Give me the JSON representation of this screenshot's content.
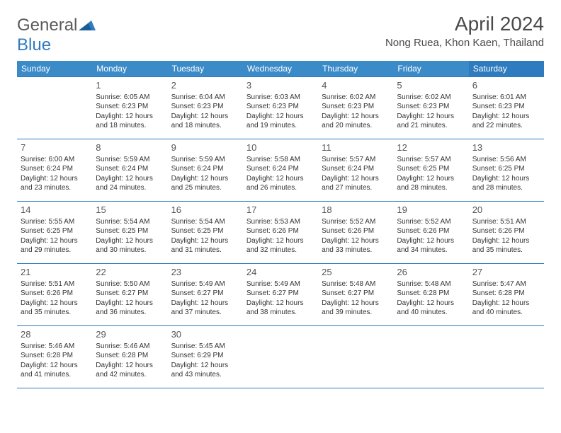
{
  "logo": {
    "general": "General",
    "blue": "Blue"
  },
  "title": "April 2024",
  "location": "Nong Ruea, Khon Kaen, Thailand",
  "day_headers": [
    "Sunday",
    "Monday",
    "Tuesday",
    "Wednesday",
    "Thursday",
    "Friday",
    "Saturday"
  ],
  "colors": {
    "header_bg": "#3b8bc9",
    "header_sat_bg": "#2f7bbf",
    "border": "#2f7bbf",
    "logo_gray": "#5a5a5a",
    "logo_blue": "#2f7bbf"
  },
  "weeks": [
    [
      null,
      {
        "n": "1",
        "sr": "Sunrise: 6:05 AM",
        "ss": "Sunset: 6:23 PM",
        "dl": "Daylight: 12 hours and 18 minutes."
      },
      {
        "n": "2",
        "sr": "Sunrise: 6:04 AM",
        "ss": "Sunset: 6:23 PM",
        "dl": "Daylight: 12 hours and 18 minutes."
      },
      {
        "n": "3",
        "sr": "Sunrise: 6:03 AM",
        "ss": "Sunset: 6:23 PM",
        "dl": "Daylight: 12 hours and 19 minutes."
      },
      {
        "n": "4",
        "sr": "Sunrise: 6:02 AM",
        "ss": "Sunset: 6:23 PM",
        "dl": "Daylight: 12 hours and 20 minutes."
      },
      {
        "n": "5",
        "sr": "Sunrise: 6:02 AM",
        "ss": "Sunset: 6:23 PM",
        "dl": "Daylight: 12 hours and 21 minutes."
      },
      {
        "n": "6",
        "sr": "Sunrise: 6:01 AM",
        "ss": "Sunset: 6:23 PM",
        "dl": "Daylight: 12 hours and 22 minutes."
      }
    ],
    [
      {
        "n": "7",
        "sr": "Sunrise: 6:00 AM",
        "ss": "Sunset: 6:24 PM",
        "dl": "Daylight: 12 hours and 23 minutes."
      },
      {
        "n": "8",
        "sr": "Sunrise: 5:59 AM",
        "ss": "Sunset: 6:24 PM",
        "dl": "Daylight: 12 hours and 24 minutes."
      },
      {
        "n": "9",
        "sr": "Sunrise: 5:59 AM",
        "ss": "Sunset: 6:24 PM",
        "dl": "Daylight: 12 hours and 25 minutes."
      },
      {
        "n": "10",
        "sr": "Sunrise: 5:58 AM",
        "ss": "Sunset: 6:24 PM",
        "dl": "Daylight: 12 hours and 26 minutes."
      },
      {
        "n": "11",
        "sr": "Sunrise: 5:57 AM",
        "ss": "Sunset: 6:24 PM",
        "dl": "Daylight: 12 hours and 27 minutes."
      },
      {
        "n": "12",
        "sr": "Sunrise: 5:57 AM",
        "ss": "Sunset: 6:25 PM",
        "dl": "Daylight: 12 hours and 28 minutes."
      },
      {
        "n": "13",
        "sr": "Sunrise: 5:56 AM",
        "ss": "Sunset: 6:25 PM",
        "dl": "Daylight: 12 hours and 28 minutes."
      }
    ],
    [
      {
        "n": "14",
        "sr": "Sunrise: 5:55 AM",
        "ss": "Sunset: 6:25 PM",
        "dl": "Daylight: 12 hours and 29 minutes."
      },
      {
        "n": "15",
        "sr": "Sunrise: 5:54 AM",
        "ss": "Sunset: 6:25 PM",
        "dl": "Daylight: 12 hours and 30 minutes."
      },
      {
        "n": "16",
        "sr": "Sunrise: 5:54 AM",
        "ss": "Sunset: 6:25 PM",
        "dl": "Daylight: 12 hours and 31 minutes."
      },
      {
        "n": "17",
        "sr": "Sunrise: 5:53 AM",
        "ss": "Sunset: 6:26 PM",
        "dl": "Daylight: 12 hours and 32 minutes."
      },
      {
        "n": "18",
        "sr": "Sunrise: 5:52 AM",
        "ss": "Sunset: 6:26 PM",
        "dl": "Daylight: 12 hours and 33 minutes."
      },
      {
        "n": "19",
        "sr": "Sunrise: 5:52 AM",
        "ss": "Sunset: 6:26 PM",
        "dl": "Daylight: 12 hours and 34 minutes."
      },
      {
        "n": "20",
        "sr": "Sunrise: 5:51 AM",
        "ss": "Sunset: 6:26 PM",
        "dl": "Daylight: 12 hours and 35 minutes."
      }
    ],
    [
      {
        "n": "21",
        "sr": "Sunrise: 5:51 AM",
        "ss": "Sunset: 6:26 PM",
        "dl": "Daylight: 12 hours and 35 minutes."
      },
      {
        "n": "22",
        "sr": "Sunrise: 5:50 AM",
        "ss": "Sunset: 6:27 PM",
        "dl": "Daylight: 12 hours and 36 minutes."
      },
      {
        "n": "23",
        "sr": "Sunrise: 5:49 AM",
        "ss": "Sunset: 6:27 PM",
        "dl": "Daylight: 12 hours and 37 minutes."
      },
      {
        "n": "24",
        "sr": "Sunrise: 5:49 AM",
        "ss": "Sunset: 6:27 PM",
        "dl": "Daylight: 12 hours and 38 minutes."
      },
      {
        "n": "25",
        "sr": "Sunrise: 5:48 AM",
        "ss": "Sunset: 6:27 PM",
        "dl": "Daylight: 12 hours and 39 minutes."
      },
      {
        "n": "26",
        "sr": "Sunrise: 5:48 AM",
        "ss": "Sunset: 6:28 PM",
        "dl": "Daylight: 12 hours and 40 minutes."
      },
      {
        "n": "27",
        "sr": "Sunrise: 5:47 AM",
        "ss": "Sunset: 6:28 PM",
        "dl": "Daylight: 12 hours and 40 minutes."
      }
    ],
    [
      {
        "n": "28",
        "sr": "Sunrise: 5:46 AM",
        "ss": "Sunset: 6:28 PM",
        "dl": "Daylight: 12 hours and 41 minutes."
      },
      {
        "n": "29",
        "sr": "Sunrise: 5:46 AM",
        "ss": "Sunset: 6:28 PM",
        "dl": "Daylight: 12 hours and 42 minutes."
      },
      {
        "n": "30",
        "sr": "Sunrise: 5:45 AM",
        "ss": "Sunset: 6:29 PM",
        "dl": "Daylight: 12 hours and 43 minutes."
      },
      null,
      null,
      null,
      null
    ]
  ]
}
